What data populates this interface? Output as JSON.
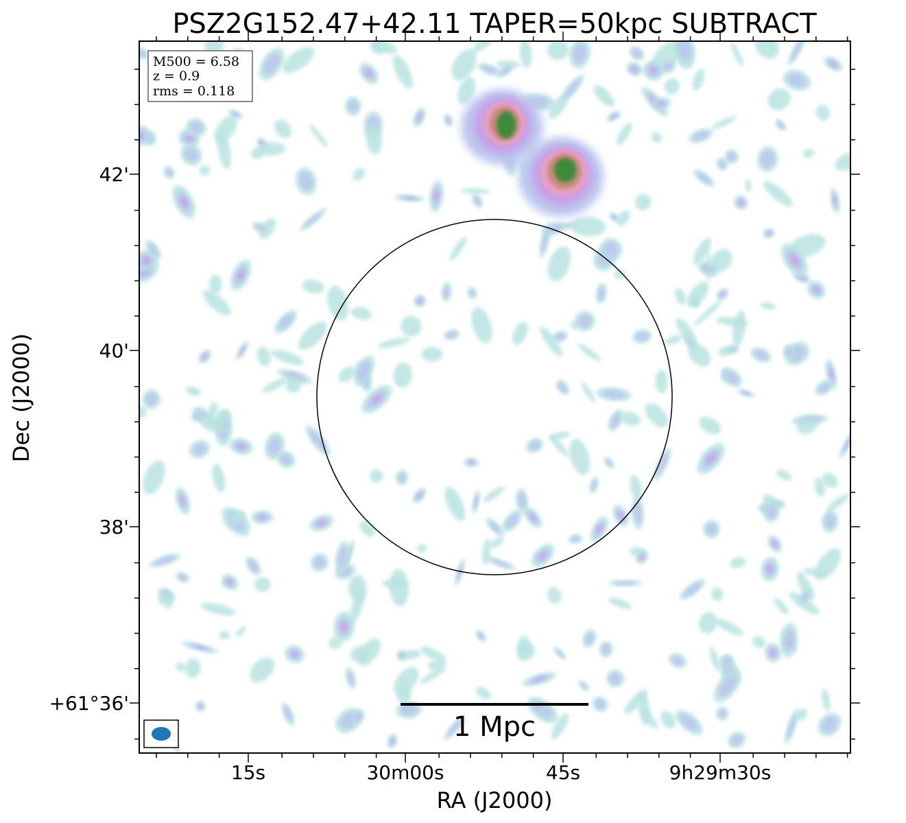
{
  "figure": {
    "title": "PSZ2G152.47+42.11 TAPER=50kpc SUBTRACT",
    "x_axis_label": "RA (J2000)",
    "y_axis_label": "Dec (J2000)",
    "x_tick_labels": [
      "15s",
      "30m00s",
      "45s",
      "9h29m30s"
    ],
    "y_tick_labels": [
      "42'",
      "40'",
      "38'",
      "+61°36'"
    ],
    "info_box": [
      "M500 = 6.58",
      "z = 0.9",
      "rms = 0.118"
    ],
    "scale_bar_label": "1 Mpc",
    "beam_color": "#1f77b4",
    "colormap": [
      "#b8e3e0",
      "#bcc7ee",
      "#c79ee6",
      "#e8a0c2",
      "#d8808a",
      "#3d8a3a"
    ],
    "sources": [
      {
        "name": "bright-source-north",
        "peak": "green"
      },
      {
        "name": "bright-source-east",
        "peak": "green"
      }
    ],
    "circle": {
      "shape": "circle",
      "color": "#000000"
    }
  }
}
